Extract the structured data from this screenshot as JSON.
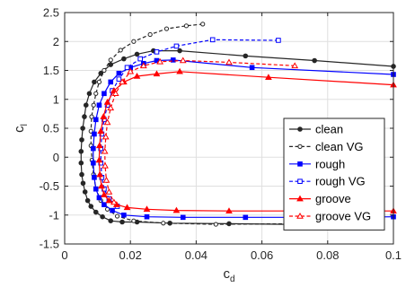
{
  "chart_data": {
    "type": "line",
    "title": "",
    "xlabel": "c",
    "xlabel_sub": "d",
    "ylabel": "c",
    "ylabel_sub": "l",
    "xlim": [
      0,
      0.1
    ],
    "ylim": [
      -1.5,
      2.5
    ],
    "xticks": [
      0,
      0.02,
      0.04,
      0.06,
      0.08,
      0.1
    ],
    "xtick_labels": [
      "0",
      "0.02",
      "0.04",
      "0.06",
      "0.08",
      "0.1"
    ],
    "yticks": [
      -1.5,
      -1,
      -0.5,
      0,
      0.5,
      1,
      1.5,
      2,
      2.5
    ],
    "ytick_labels": [
      "-1.5",
      "-1",
      "-0.5",
      "0",
      "0.5",
      "1",
      "1.5",
      "2",
      "2.5"
    ],
    "grid": true,
    "legend_position": "right",
    "series": [
      {
        "name": "clean",
        "color": "#262626",
        "dash": "solid",
        "marker": "filled-circle",
        "x": [
          0.1,
          0.076,
          0.055,
          0.035,
          0.027,
          0.022,
          0.018,
          0.014,
          0.011,
          0.009,
          0.0075,
          0.0065,
          0.006,
          0.0055,
          0.0052,
          0.005,
          0.005,
          0.0052,
          0.0056,
          0.0062,
          0.007,
          0.008,
          0.0095,
          0.0115,
          0.014,
          0.0175,
          0.022,
          0.032,
          0.05,
          0.068
        ],
        "y": [
          1.57,
          1.67,
          1.75,
          1.84,
          1.84,
          1.78,
          1.7,
          1.6,
          1.45,
          1.3,
          1.1,
          0.9,
          0.7,
          0.5,
          0.3,
          0.1,
          -0.1,
          -0.3,
          -0.45,
          -0.6,
          -0.75,
          -0.85,
          -0.95,
          -1.03,
          -1.1,
          -1.12,
          -1.12,
          -1.14,
          -1.15,
          -1.16
        ]
      },
      {
        "name": "clean VG",
        "color": "#262626",
        "dash": "dashed",
        "marker": "open-circle",
        "x": [
          0.042,
          0.037,
          0.031,
          0.026,
          0.021,
          0.017,
          0.014,
          0.012,
          0.0105,
          0.0095,
          0.0088,
          0.0082,
          0.008,
          0.008,
          0.0083,
          0.0088,
          0.0095,
          0.011,
          0.013,
          0.016,
          0.021,
          0.03,
          0.046,
          0.07,
          0.091
        ],
        "y": [
          2.3,
          2.27,
          2.22,
          2.12,
          2.0,
          1.85,
          1.68,
          1.5,
          1.3,
          1.1,
          0.9,
          0.7,
          0.45,
          0.2,
          -0.05,
          -0.3,
          -0.55,
          -0.75,
          -0.9,
          -1.02,
          -1.1,
          -1.14,
          -1.16,
          -1.15,
          -1.14
        ]
      },
      {
        "name": "rough",
        "color": "#0000ff",
        "dash": "solid",
        "marker": "filled-square",
        "x": [
          0.1,
          0.057,
          0.033,
          0.028,
          0.024,
          0.02,
          0.0165,
          0.014,
          0.012,
          0.0105,
          0.0095,
          0.009,
          0.0087,
          0.0087,
          0.009,
          0.0095,
          0.0105,
          0.012,
          0.0145,
          0.018,
          0.025,
          0.036,
          0.055,
          0.08,
          0.1
        ],
        "y": [
          1.43,
          1.55,
          1.68,
          1.67,
          1.62,
          1.55,
          1.45,
          1.3,
          1.1,
          0.9,
          0.65,
          0.4,
          0.15,
          -0.1,
          -0.35,
          -0.55,
          -0.7,
          -0.82,
          -0.92,
          -1.0,
          -1.03,
          -1.04,
          -1.04,
          -1.04,
          -1.03
        ]
      },
      {
        "name": "rough VG",
        "color": "#0000ff",
        "dash": "dashed",
        "marker": "open-square",
        "x": [
          0.065,
          0.045,
          0.034,
          0.028,
          0.023,
          0.019,
          0.0165,
          0.0145,
          0.013,
          0.012,
          0.0113,
          0.011,
          0.011,
          0.0113,
          0.012,
          0.0135,
          0.016
        ],
        "y": [
          2.02,
          2.03,
          1.92,
          1.82,
          1.7,
          1.55,
          1.35,
          1.15,
          0.9,
          0.65,
          0.4,
          0.15,
          -0.1,
          -0.35,
          -0.55,
          -0.72,
          -0.85
        ]
      },
      {
        "name": "groove",
        "color": "#ff0000",
        "dash": "solid",
        "marker": "filled-triangle",
        "x": [
          0.1,
          0.062,
          0.035,
          0.028,
          0.022,
          0.018,
          0.015,
          0.013,
          0.0118,
          0.011,
          0.0106,
          0.0105,
          0.0107,
          0.0112,
          0.012,
          0.0135,
          0.0158,
          0.019,
          0.025,
          0.034,
          0.05,
          0.07,
          0.1
        ],
        "y": [
          1.25,
          1.38,
          1.48,
          1.44,
          1.4,
          1.3,
          1.15,
          0.95,
          0.7,
          0.45,
          0.2,
          -0.05,
          -0.3,
          -0.5,
          -0.65,
          -0.75,
          -0.82,
          -0.87,
          -0.9,
          -0.92,
          -0.93,
          -0.93,
          -0.93
        ]
      },
      {
        "name": "groove VG",
        "color": "#ff0000",
        "dash": "dashed",
        "marker": "open-triangle",
        "x": [
          0.07,
          0.05,
          0.036,
          0.029,
          0.024,
          0.02,
          0.0175,
          0.0155,
          0.014,
          0.013,
          0.0125,
          0.0122,
          0.0123,
          0.0127,
          0.0135,
          0.015
        ],
        "y": [
          1.58,
          1.64,
          1.67,
          1.65,
          1.58,
          1.48,
          1.3,
          1.1,
          0.85,
          0.6,
          0.35,
          0.1,
          -0.15,
          -0.4,
          -0.6,
          -0.78
        ]
      }
    ]
  }
}
